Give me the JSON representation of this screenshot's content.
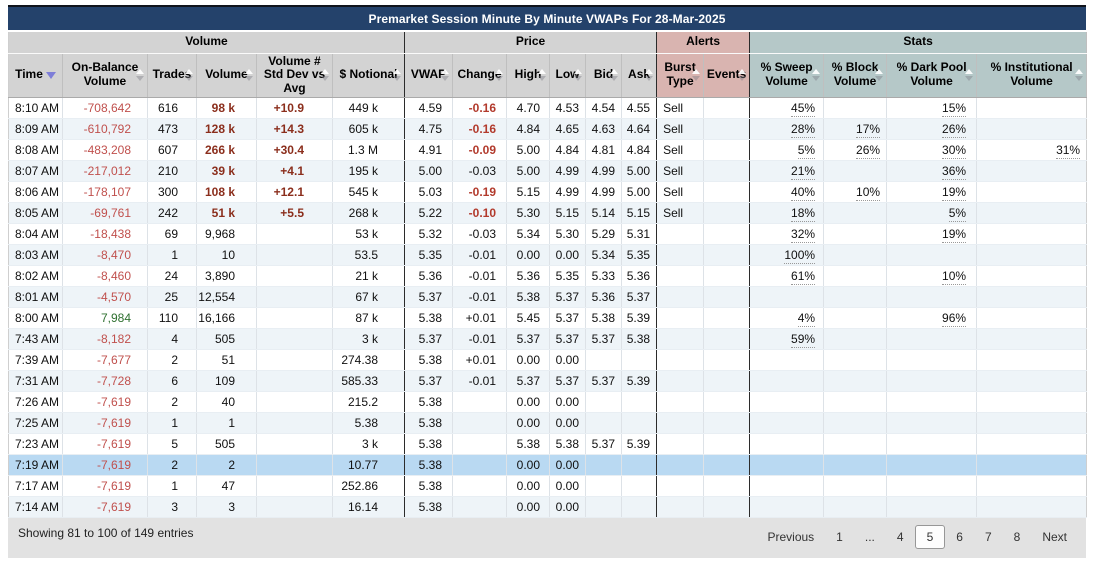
{
  "title": "Premarket Session Minute By Minute VWAPs For 28-Mar-2025",
  "groups": [
    {
      "label": "Volume",
      "span": 6,
      "theme": "gray"
    },
    {
      "label": "Price",
      "span": 6,
      "theme": "gray"
    },
    {
      "label": "Alerts",
      "span": 2,
      "theme": "pink"
    },
    {
      "label": "Stats",
      "span": 4,
      "theme": "teal"
    }
  ],
  "columns": [
    {
      "key": "time",
      "label": "Time"
    },
    {
      "key": "obv",
      "label": "On-Balance Volume"
    },
    {
      "key": "trades",
      "label": "Trades"
    },
    {
      "key": "volume",
      "label": "Volume"
    },
    {
      "key": "stddev",
      "label": "Volume # Std Dev vs Avg"
    },
    {
      "key": "notional",
      "label": "$ Notional"
    },
    {
      "key": "vwap",
      "label": "VWAP"
    },
    {
      "key": "change",
      "label": "Change"
    },
    {
      "key": "high",
      "label": "High"
    },
    {
      "key": "low",
      "label": "Low"
    },
    {
      "key": "bid",
      "label": "Bid"
    },
    {
      "key": "ask",
      "label": "Ask"
    },
    {
      "key": "burst",
      "label": "Burst Type"
    },
    {
      "key": "events",
      "label": "Events"
    },
    {
      "key": "sweep",
      "label": "% Sweep Volume"
    },
    {
      "key": "block",
      "label": "% Block Volume"
    },
    {
      "key": "dark",
      "label": "% Dark Pool Volume"
    },
    {
      "key": "inst",
      "label": "% Institutional Volume"
    }
  ],
  "sort": {
    "column": "time",
    "direction": "desc"
  },
  "rows": [
    {
      "cells": [
        "8:10 AM",
        "-708,642",
        "616",
        "98 k",
        "+10.9",
        "449 k",
        "4.59",
        "-0.16",
        "4.70",
        "4.53",
        "4.54",
        "4.55",
        "Sell",
        "",
        "45%",
        "",
        "15%",
        ""
      ],
      "volHot": true,
      "changeHot": true,
      "selected": false
    },
    {
      "cells": [
        "8:09 AM",
        "-610,792",
        "473",
        "128 k",
        "+14.3",
        "605 k",
        "4.75",
        "-0.16",
        "4.84",
        "4.65",
        "4.63",
        "4.64",
        "Sell",
        "",
        "28%",
        "17%",
        "26%",
        ""
      ],
      "volHot": true,
      "changeHot": true,
      "selected": false
    },
    {
      "cells": [
        "8:08 AM",
        "-483,208",
        "607",
        "266 k",
        "+30.4",
        "1.3 M",
        "4.91",
        "-0.09",
        "5.00",
        "4.84",
        "4.81",
        "4.84",
        "Sell",
        "",
        "5%",
        "26%",
        "30%",
        "31%"
      ],
      "volHot": true,
      "changeHot": true,
      "selected": false
    },
    {
      "cells": [
        "8:07 AM",
        "-217,012",
        "210",
        "39 k",
        "+4.1",
        "195 k",
        "5.00",
        "-0.03",
        "5.00",
        "4.99",
        "4.99",
        "5.00",
        "Sell",
        "",
        "21%",
        "",
        "36%",
        ""
      ],
      "volHot": true,
      "changeHot": false,
      "selected": false
    },
    {
      "cells": [
        "8:06 AM",
        "-178,107",
        "300",
        "108 k",
        "+12.1",
        "545 k",
        "5.03",
        "-0.19",
        "5.15",
        "4.99",
        "4.99",
        "5.00",
        "Sell",
        "",
        "40%",
        "10%",
        "19%",
        ""
      ],
      "volHot": true,
      "changeHot": true,
      "selected": false
    },
    {
      "cells": [
        "8:05 AM",
        "-69,761",
        "242",
        "51 k",
        "+5.5",
        "268 k",
        "5.22",
        "-0.10",
        "5.30",
        "5.15",
        "5.14",
        "5.15",
        "Sell",
        "",
        "18%",
        "",
        "5%",
        ""
      ],
      "volHot": true,
      "changeHot": true,
      "selected": false
    },
    {
      "cells": [
        "8:04 AM",
        "-18,438",
        "69",
        "9,968",
        "",
        "53 k",
        "5.32",
        "-0.03",
        "5.34",
        "5.30",
        "5.29",
        "5.31",
        "",
        "",
        "32%",
        "",
        "19%",
        ""
      ],
      "volHot": false,
      "changeHot": false,
      "selected": false
    },
    {
      "cells": [
        "8:03 AM",
        "-8,470",
        "1",
        "10",
        "",
        "53.5",
        "5.35",
        "-0.01",
        "0.00",
        "0.00",
        "5.34",
        "5.35",
        "",
        "",
        "100%",
        "",
        "",
        ""
      ],
      "volHot": false,
      "changeHot": false,
      "selected": false
    },
    {
      "cells": [
        "8:02 AM",
        "-8,460",
        "24",
        "3,890",
        "",
        "21 k",
        "5.36",
        "-0.01",
        "5.36",
        "5.35",
        "5.33",
        "5.36",
        "",
        "",
        "61%",
        "",
        "10%",
        ""
      ],
      "volHot": false,
      "changeHot": false,
      "selected": false
    },
    {
      "cells": [
        "8:01 AM",
        "-4,570",
        "25",
        "12,554",
        "",
        "67 k",
        "5.37",
        "-0.01",
        "5.38",
        "5.37",
        "5.36",
        "5.37",
        "",
        "",
        "",
        "",
        "",
        ""
      ],
      "volHot": false,
      "changeHot": false,
      "selected": false
    },
    {
      "cells": [
        "8:00 AM",
        "7,984",
        "110",
        "16,166",
        "",
        "87 k",
        "5.38",
        "+0.01",
        "5.45",
        "5.37",
        "5.38",
        "5.39",
        "",
        "",
        "4%",
        "",
        "96%",
        ""
      ],
      "volHot": false,
      "changeHot": false,
      "selected": false
    },
    {
      "cells": [
        "7:43 AM",
        "-8,182",
        "4",
        "505",
        "",
        "3 k",
        "5.37",
        "-0.01",
        "5.37",
        "5.37",
        "5.37",
        "5.38",
        "",
        "",
        "59%",
        "",
        "",
        ""
      ],
      "volHot": false,
      "changeHot": false,
      "selected": false
    },
    {
      "cells": [
        "7:39 AM",
        "-7,677",
        "2",
        "51",
        "",
        "274.38",
        "5.38",
        "+0.01",
        "0.00",
        "0.00",
        "",
        "",
        "",
        "",
        "",
        "",
        "",
        ""
      ],
      "volHot": false,
      "changeHot": false,
      "selected": false
    },
    {
      "cells": [
        "7:31 AM",
        "-7,728",
        "6",
        "109",
        "",
        "585.33",
        "5.37",
        "-0.01",
        "5.37",
        "5.37",
        "5.37",
        "5.39",
        "",
        "",
        "",
        "",
        "",
        ""
      ],
      "volHot": false,
      "changeHot": false,
      "selected": false
    },
    {
      "cells": [
        "7:26 AM",
        "-7,619",
        "2",
        "40",
        "",
        "215.2",
        "5.38",
        "",
        "0.00",
        "0.00",
        "",
        "",
        "",
        "",
        "",
        "",
        "",
        ""
      ],
      "volHot": false,
      "changeHot": false,
      "selected": false
    },
    {
      "cells": [
        "7:25 AM",
        "-7,619",
        "1",
        "1",
        "",
        "5.38",
        "5.38",
        "",
        "0.00",
        "0.00",
        "",
        "",
        "",
        "",
        "",
        "",
        "",
        ""
      ],
      "volHot": false,
      "changeHot": false,
      "selected": false
    },
    {
      "cells": [
        "7:23 AM",
        "-7,619",
        "5",
        "505",
        "",
        "3 k",
        "5.38",
        "",
        "5.38",
        "5.38",
        "5.37",
        "5.39",
        "",
        "",
        "",
        "",
        "",
        ""
      ],
      "volHot": false,
      "changeHot": false,
      "selected": false
    },
    {
      "cells": [
        "7:19 AM",
        "-7,619",
        "2",
        "2",
        "",
        "10.77",
        "5.38",
        "",
        "0.00",
        "0.00",
        "",
        "",
        "",
        "",
        "",
        "",
        "",
        ""
      ],
      "volHot": false,
      "changeHot": false,
      "selected": true
    },
    {
      "cells": [
        "7:17 AM",
        "-7,619",
        "1",
        "47",
        "",
        "252.86",
        "5.38",
        "",
        "0.00",
        "0.00",
        "",
        "",
        "",
        "",
        "",
        "",
        "",
        ""
      ],
      "volHot": false,
      "changeHot": false,
      "selected": false
    },
    {
      "cells": [
        "7:14 AM",
        "-7,619",
        "3",
        "3",
        "",
        "16.14",
        "5.38",
        "",
        "0.00",
        "0.00",
        "",
        "",
        "",
        "",
        "",
        "",
        "",
        ""
      ],
      "volHot": false,
      "changeHot": false,
      "selected": false
    }
  ],
  "footer": {
    "summary": "Showing 81 to 100 of 149 entries",
    "pagination": {
      "items": [
        "Previous",
        "1",
        "...",
        "4",
        "5",
        "6",
        "7",
        "8",
        "Next"
      ],
      "active": "5"
    }
  },
  "colors": {
    "title_bar_bg": "#24426b",
    "group_header_bg": "#d3d3d3",
    "alerts_group_bg": "#d9b4b0",
    "stats_group_bg": "#b5c8c8",
    "row_stripe_bg": "#eef4f8",
    "selected_row_bg": "#b9d9f2",
    "negative_value": "#c0504d",
    "positive_value": "#2f7030",
    "hot_volume_value": "#8b2e1c",
    "hot_change_value": "#b23a2c",
    "sort_active_arrow": "#7e7ed8"
  }
}
